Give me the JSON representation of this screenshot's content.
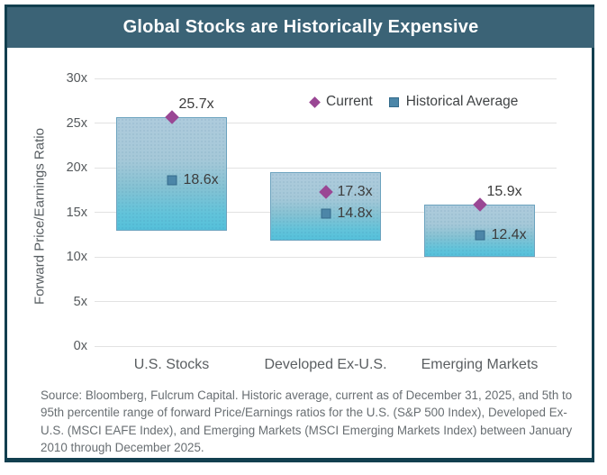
{
  "header": {
    "title": "Global Stocks are Historically Expensive"
  },
  "legend": {
    "items": [
      {
        "label": "Current",
        "marker": "diamond",
        "color": "#9a4794"
      },
      {
        "label": "Historical Average",
        "marker": "square",
        "color": "#4c86a8"
      }
    ]
  },
  "chart_data": {
    "type": "bar",
    "subtype": "floating-range-bars-with-point-markers",
    "title": "Global Stocks are Historically Expensive",
    "xlabel": "",
    "ylabel": "Forward Price/Earnings Ratio",
    "ylim": [
      0,
      30
    ],
    "ytick_step": 5,
    "ytick_suffix": "x",
    "ytick_labels": [
      "0x",
      "5x",
      "10x",
      "15x",
      "20x",
      "25x",
      "30x"
    ],
    "grid": true,
    "legend_position": "top-inside",
    "categories": [
      "U.S. Stocks",
      "Developed Ex-U.S.",
      "Emerging Markets"
    ],
    "series": [
      {
        "name": "5th to 95th percentile range",
        "type": "range-bar",
        "low": [
          12.9,
          11.8,
          10.0
        ],
        "high": [
          25.7,
          19.5,
          15.9
        ]
      },
      {
        "name": "Current",
        "type": "point",
        "marker": "diamond",
        "values": [
          25.7,
          17.3,
          15.9
        ],
        "labels": [
          "25.7x",
          "17.3x",
          "15.9x"
        ],
        "label_positions": [
          "above",
          "right",
          "above"
        ]
      },
      {
        "name": "Historical Average",
        "type": "point",
        "marker": "square",
        "values": [
          18.6,
          14.8,
          12.4
        ],
        "labels": [
          "18.6x",
          "14.8x",
          "12.4x"
        ],
        "label_positions": [
          "right",
          "right",
          "right"
        ]
      }
    ],
    "colors": {
      "header_background": "#3b6376",
      "frame_border": "#123f4f",
      "bar_gradient_top": "#aecbdc",
      "bar_gradient_bottom": "#55c0da",
      "bar_border": "#6ba2be",
      "current_marker": "#9a4794",
      "historical_marker": "#4c86a8",
      "gridline": "#e2e2e2",
      "title_text": "#ffffff"
    }
  },
  "footer": {
    "source_text": "Source: Bloomberg, Fulcrum Capital. Historic average, current as of December 31, 2025, and 5th to 95th percentile range of forward Price/Earnings ratios for the U.S. (S&P 500 Index), Developed Ex-U.S. (MSCI EAFE Index), and Emerging Markets (MSCI Emerging Markets Index) between January 2010 through December 2025."
  }
}
